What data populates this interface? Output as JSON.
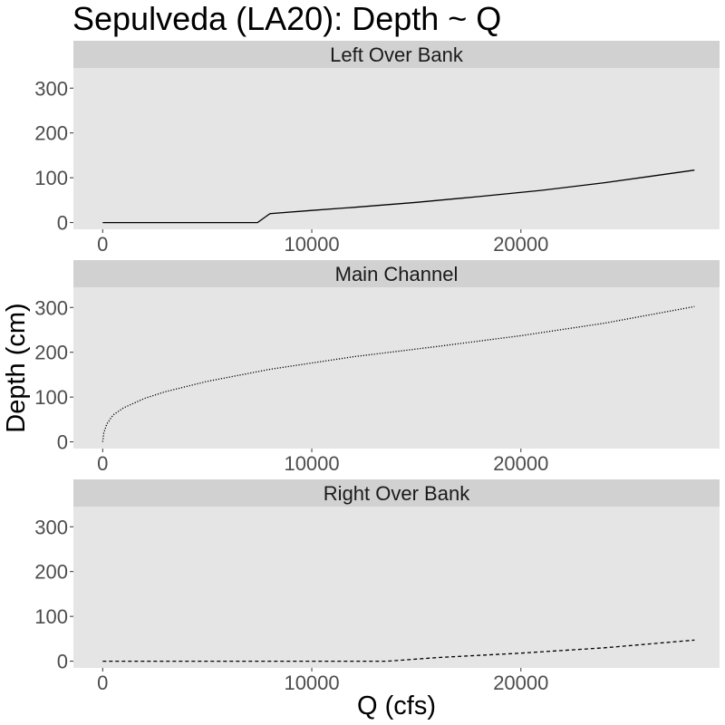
{
  "chart_data": {
    "type": "line",
    "title": "Sepulveda (LA20): Depth ~ Q",
    "xlabel": "Q (cfs)",
    "ylabel": "Depth (cm)",
    "xlim": [
      -1400,
      29500
    ],
    "ylim": [
      -15,
      345
    ],
    "x_ticks": [
      0,
      10000,
      20000
    ],
    "x_tick_labels": [
      "0",
      "10000",
      "20000"
    ],
    "y_ticks": [
      0,
      100,
      200,
      300
    ],
    "y_tick_labels": [
      "0",
      "100",
      "200",
      "300"
    ],
    "grid": false,
    "legend": "none",
    "colors": {
      "panel_bg": "#e5e5e5",
      "strip_bg": "#d1d1d1",
      "line": "#000000",
      "tick_text": "#4d4d4d"
    },
    "panels": [
      {
        "strip_label": "Left Over Bank",
        "line_style": "solid",
        "x": [
          0,
          7400,
          8000,
          10000,
          12000,
          15000,
          18000,
          21000,
          24000,
          26000,
          28300
        ],
        "y": [
          0,
          0,
          20,
          27,
          34,
          45,
          58,
          72,
          89,
          102,
          117
        ]
      },
      {
        "strip_label": "Main Channel",
        "line_style": "dotted",
        "x": [
          0,
          50,
          200,
          500,
          1000,
          2000,
          3000,
          5000,
          8000,
          12000,
          16000,
          20000,
          24000,
          28300
        ],
        "y": [
          0,
          20,
          40,
          60,
          76,
          97,
          112,
          135,
          162,
          190,
          213,
          237,
          265,
          302
        ]
      },
      {
        "strip_label": "Right Over Bank",
        "line_style": "dashed",
        "x": [
          0,
          5000,
          10000,
          13600,
          16000,
          20000,
          24000,
          28300
        ],
        "y": [
          0,
          0,
          0,
          0,
          8,
          18,
          30,
          47
        ]
      }
    ]
  }
}
